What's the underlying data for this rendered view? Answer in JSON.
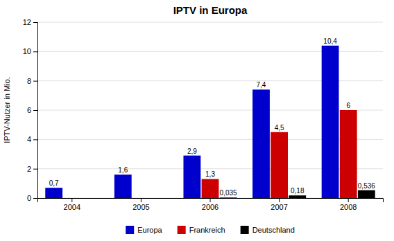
{
  "chart_data": {
    "type": "bar",
    "title": "IPTV in Europa",
    "ylabel": "IPTV-Nutzer in Mio.",
    "categories": [
      "2004",
      "2005",
      "2006",
      "2007",
      "2008"
    ],
    "series": [
      {
        "name": "Europa",
        "color": "#0000CC",
        "values": [
          0.7,
          1.6,
          2.9,
          7.4,
          10.4
        ],
        "value_labels": [
          "0,7",
          "1,6",
          "2,9",
          "7,4",
          "10,4"
        ]
      },
      {
        "name": "Frankreich",
        "color": "#CC0000",
        "values": [
          0.0,
          0.0,
          1.3,
          4.5,
          6.0
        ],
        "value_labels": [
          null,
          null,
          "1,3",
          "4,5",
          "6"
        ]
      },
      {
        "name": "Deutschland",
        "color": "#000000",
        "values": [
          0.0,
          0.0,
          0.035,
          0.18,
          0.536
        ],
        "value_labels": [
          null,
          null,
          "0,035",
          "0,18",
          "0,536"
        ]
      }
    ],
    "ylim": [
      0,
      12
    ],
    "yticks": [
      0,
      2,
      4,
      6,
      8,
      10,
      12
    ],
    "grid": true,
    "legend": "bottom",
    "data_labels": true
  }
}
